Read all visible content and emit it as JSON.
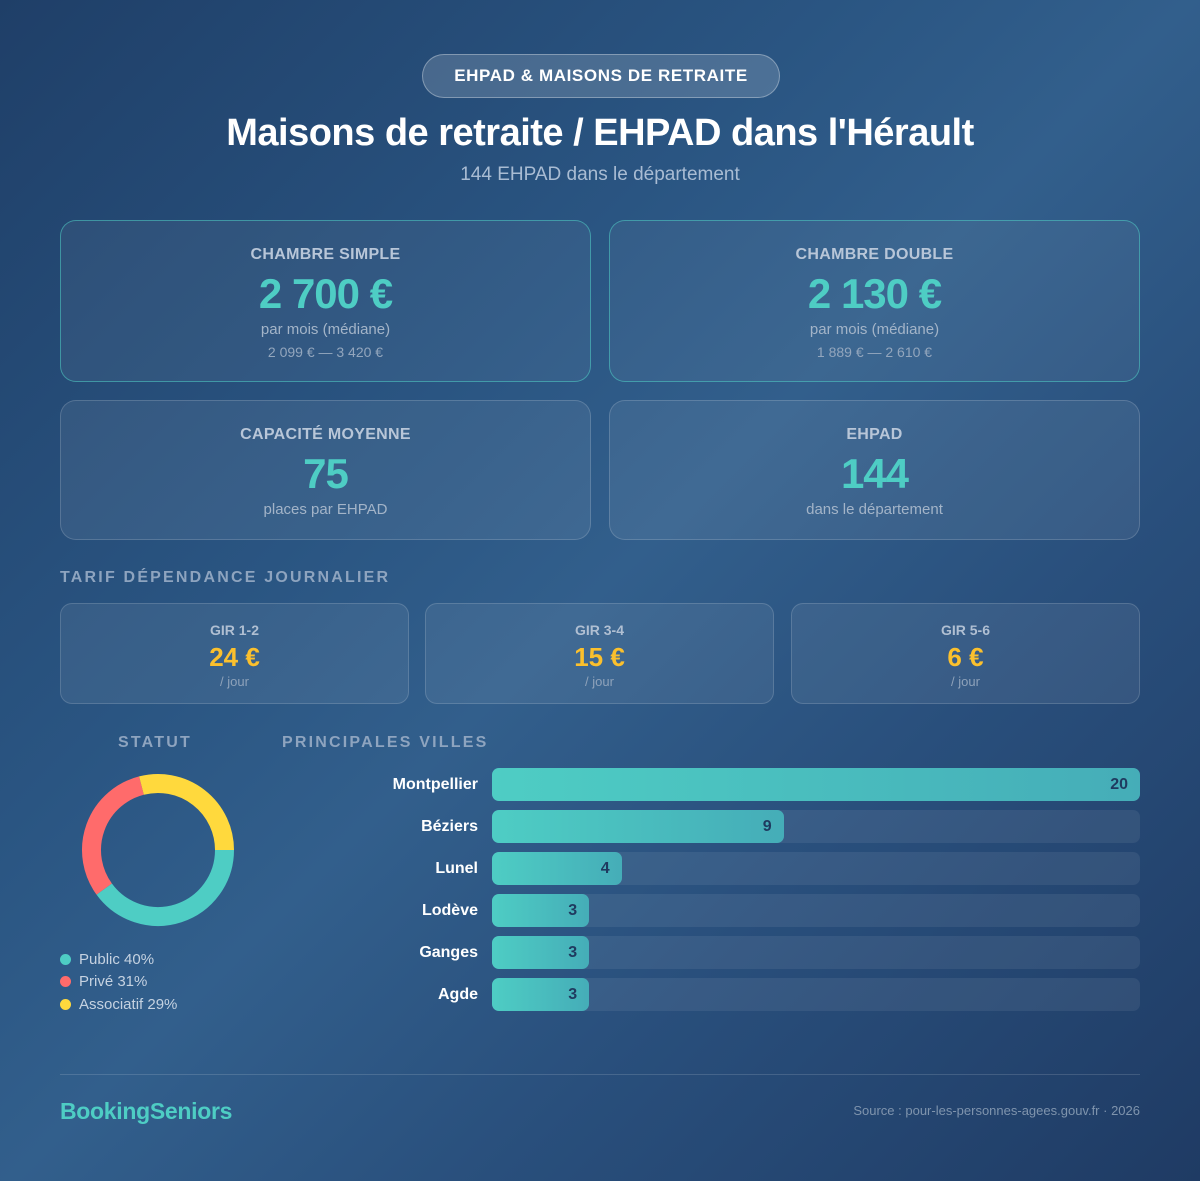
{
  "header": {
    "badge": "EHPAD & MAISONS DE RETRAITE",
    "title": "Maisons de retraite / EHPAD dans l'Hérault",
    "subtitle": "144 EHPAD dans le département"
  },
  "stats": [
    {
      "label": "CHAMBRE SIMPLE",
      "value": "2 700 €",
      "sub": "par mois (médiane)",
      "range": "2 099 € — 3 420 €"
    },
    {
      "label": "CHAMBRE DOUBLE",
      "value": "2 130 €",
      "sub": "par mois (médiane)",
      "range": "1 889 € — 2 610 €"
    },
    {
      "label": "CAPACITÉ MOYENNE",
      "value": "75",
      "sub": "places par EHPAD"
    },
    {
      "label": "EHPAD",
      "value": "144",
      "sub": "dans le département"
    }
  ],
  "gir": {
    "title": "TARIF DÉPENDANCE JOURNALIER",
    "items": [
      {
        "label": "GIR 1-2",
        "value": "24 €",
        "unit": "/ jour"
      },
      {
        "label": "GIR 3-4",
        "value": "15 €",
        "unit": "/ jour"
      },
      {
        "label": "GIR 5-6",
        "value": "6 €",
        "unit": "/ jour"
      }
    ]
  },
  "statut": {
    "title": "STATUT",
    "legend": [
      {
        "label": "Public 40%",
        "color": "#4ecdc4"
      },
      {
        "label": "Privé 31%",
        "color": "#ff6b6b"
      },
      {
        "label": "Associatif 29%",
        "color": "#ffd93d"
      }
    ]
  },
  "villes": {
    "title": "PRINCIPALES VILLES"
  },
  "footer": {
    "brand": "BookingSeniors",
    "source": "Source : pour-les-personnes-agees.gouv.fr · 2026"
  },
  "colors": {
    "accent": "#4ecdc4",
    "gir_value": "#fbc02d",
    "public": "#4ecdc4",
    "prive": "#ff6b6b",
    "associatif": "#ffd93d"
  },
  "chart_data": [
    {
      "type": "pie",
      "title": "STATUT",
      "categories": [
        "Public",
        "Privé",
        "Associatif"
      ],
      "values": [
        40,
        31,
        29
      ],
      "unit": "%",
      "colors": [
        "#4ecdc4",
        "#ff6b6b",
        "#ffd93d"
      ],
      "donut": true,
      "legend_position": "bottom"
    },
    {
      "type": "bar",
      "orientation": "horizontal",
      "title": "PRINCIPALES VILLES",
      "categories": [
        "Montpellier",
        "Béziers",
        "Lunel",
        "Lodève",
        "Ganges",
        "Agde"
      ],
      "values": [
        20,
        9,
        4,
        3,
        3,
        3
      ],
      "xlabel": "",
      "ylabel": "",
      "xlim": [
        0,
        20
      ]
    }
  ]
}
